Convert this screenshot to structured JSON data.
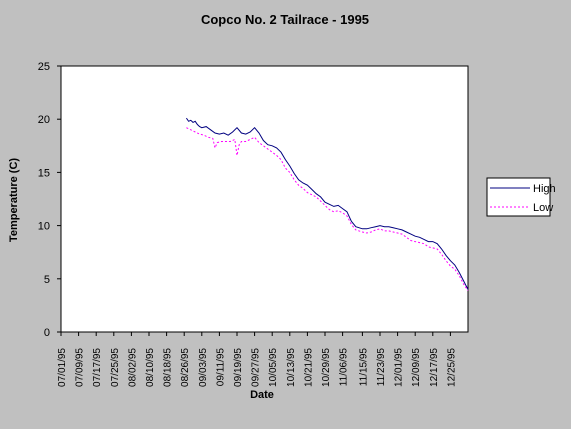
{
  "chart_data": {
    "type": "line",
    "title": "Copco No. 2 Tailrace - 1995",
    "xlabel": "Date",
    "ylabel": "Temperature (C)",
    "ylim": [
      0,
      25
    ],
    "yticks": [
      "0",
      "5",
      "10",
      "15",
      "20",
      "25"
    ],
    "xlim": [
      "1995-07-01",
      "1996-01-02"
    ],
    "xticks": [
      "07/01/95",
      "07/09/95",
      "07/17/95",
      "07/25/95",
      "08/02/95",
      "08/10/95",
      "08/18/95",
      "08/26/95",
      "09/03/95",
      "09/11/95",
      "09/19/95",
      "09/27/95",
      "10/05/95",
      "10/13/95",
      "10/21/95",
      "10/29/95",
      "11/06/95",
      "11/15/95",
      "11/23/95",
      "12/01/95",
      "12/09/95",
      "12/17/95",
      "12/25/95"
    ],
    "grid": false,
    "legend_position": "right",
    "colors": {
      "plot_bg": "#ffffff",
      "page_bg": "#c0c0c0",
      "high": "#000080",
      "low": "#ff00ff"
    },
    "series": [
      {
        "name": "High",
        "style": "solid",
        "x": [
          "1995-08-27",
          "1995-08-28",
          "1995-08-29",
          "1995-08-30",
          "1995-08-31",
          "1995-09-01",
          "1995-09-02",
          "1995-09-03",
          "1995-09-05",
          "1995-09-07",
          "1995-09-09",
          "1995-09-11",
          "1995-09-13",
          "1995-09-15",
          "1995-09-17",
          "1995-09-19",
          "1995-09-21",
          "1995-09-23",
          "1995-09-25",
          "1995-09-27",
          "1995-09-29",
          "1995-10-01",
          "1995-10-03",
          "1995-10-05",
          "1995-10-07",
          "1995-10-09",
          "1995-10-11",
          "1995-10-13",
          "1995-10-15",
          "1995-10-17",
          "1995-10-19",
          "1995-10-21",
          "1995-10-23",
          "1995-10-25",
          "1995-10-27",
          "1995-10-29",
          "1995-10-31",
          "1995-11-02",
          "1995-11-04",
          "1995-11-06",
          "1995-11-08",
          "1995-11-10",
          "1995-11-12",
          "1995-11-15",
          "1995-11-17",
          "1995-11-19",
          "1995-11-21",
          "1995-11-23",
          "1995-11-25",
          "1995-11-27",
          "1995-11-29",
          "1995-12-01",
          "1995-12-03",
          "1995-12-05",
          "1995-12-07",
          "1995-12-09",
          "1995-12-11",
          "1995-12-13",
          "1995-12-15",
          "1995-12-17",
          "1995-12-19",
          "1995-12-21",
          "1995-12-23",
          "1995-12-25",
          "1995-12-27",
          "1995-12-29",
          "1995-12-31",
          "1996-01-01",
          "1996-01-02"
        ],
        "y": [
          20.1,
          19.8,
          19.9,
          19.7,
          19.8,
          19.5,
          19.3,
          19.2,
          19.3,
          19.0,
          18.7,
          18.6,
          18.7,
          18.5,
          18.8,
          19.2,
          18.7,
          18.6,
          18.8,
          19.2,
          18.7,
          18.0,
          17.6,
          17.5,
          17.3,
          16.9,
          16.2,
          15.6,
          14.9,
          14.3,
          14.0,
          13.8,
          13.4,
          13.0,
          12.7,
          12.2,
          12.0,
          11.8,
          11.9,
          11.6,
          11.3,
          10.4,
          9.9,
          9.7,
          9.7,
          9.8,
          9.9,
          10.0,
          9.9,
          9.9,
          9.8,
          9.7,
          9.6,
          9.4,
          9.2,
          9.0,
          8.9,
          8.7,
          8.5,
          8.5,
          8.3,
          7.8,
          7.2,
          6.7,
          6.3,
          5.6,
          4.8,
          4.4,
          4.0
        ]
      },
      {
        "name": "Low",
        "style": "dotted",
        "x": [
          "1995-08-27",
          "1995-08-29",
          "1995-08-31",
          "1995-09-02",
          "1995-09-04",
          "1995-09-06",
          "1995-09-08",
          "1995-09-09",
          "1995-09-10",
          "1995-09-12",
          "1995-09-14",
          "1995-09-16",
          "1995-09-18",
          "1995-09-19",
          "1995-09-20",
          "1995-09-21",
          "1995-09-23",
          "1995-09-25",
          "1995-09-27",
          "1995-09-29",
          "1995-10-01",
          "1995-10-03",
          "1995-10-05",
          "1995-10-07",
          "1995-10-09",
          "1995-10-11",
          "1995-10-13",
          "1995-10-15",
          "1995-10-17",
          "1995-10-19",
          "1995-10-21",
          "1995-10-23",
          "1995-10-25",
          "1995-10-27",
          "1995-10-29",
          "1995-10-31",
          "1995-11-02",
          "1995-11-04",
          "1995-11-06",
          "1995-11-08",
          "1995-11-10",
          "1995-11-12",
          "1995-11-15",
          "1995-11-17",
          "1995-11-19",
          "1995-11-21",
          "1995-11-23",
          "1995-11-25",
          "1995-11-27",
          "1995-11-29",
          "1995-12-01",
          "1995-12-03",
          "1995-12-05",
          "1995-12-07",
          "1995-12-09",
          "1995-12-11",
          "1995-12-13",
          "1995-12-15",
          "1995-12-17",
          "1995-12-19",
          "1995-12-21",
          "1995-12-23",
          "1995-12-25",
          "1995-12-27",
          "1995-12-29",
          "1995-12-31",
          "1996-01-01",
          "1996-01-02"
        ],
        "y": [
          19.2,
          19.0,
          18.8,
          18.6,
          18.5,
          18.3,
          18.2,
          17.3,
          17.8,
          17.9,
          17.9,
          17.9,
          18.1,
          16.6,
          17.6,
          17.9,
          17.9,
          18.1,
          18.3,
          17.8,
          17.5,
          17.2,
          16.9,
          16.6,
          16.2,
          15.4,
          15.0,
          14.3,
          13.8,
          13.5,
          13.1,
          12.9,
          12.7,
          12.3,
          11.9,
          11.5,
          11.3,
          11.4,
          11.2,
          10.9,
          10.1,
          9.6,
          9.4,
          9.3,
          9.4,
          9.6,
          9.7,
          9.5,
          9.5,
          9.4,
          9.3,
          9.2,
          8.9,
          8.6,
          8.5,
          8.4,
          8.3,
          8.0,
          7.9,
          7.8,
          7.3,
          6.7,
          6.2,
          5.9,
          5.3,
          4.5,
          4.2,
          3.9
        ]
      }
    ]
  }
}
